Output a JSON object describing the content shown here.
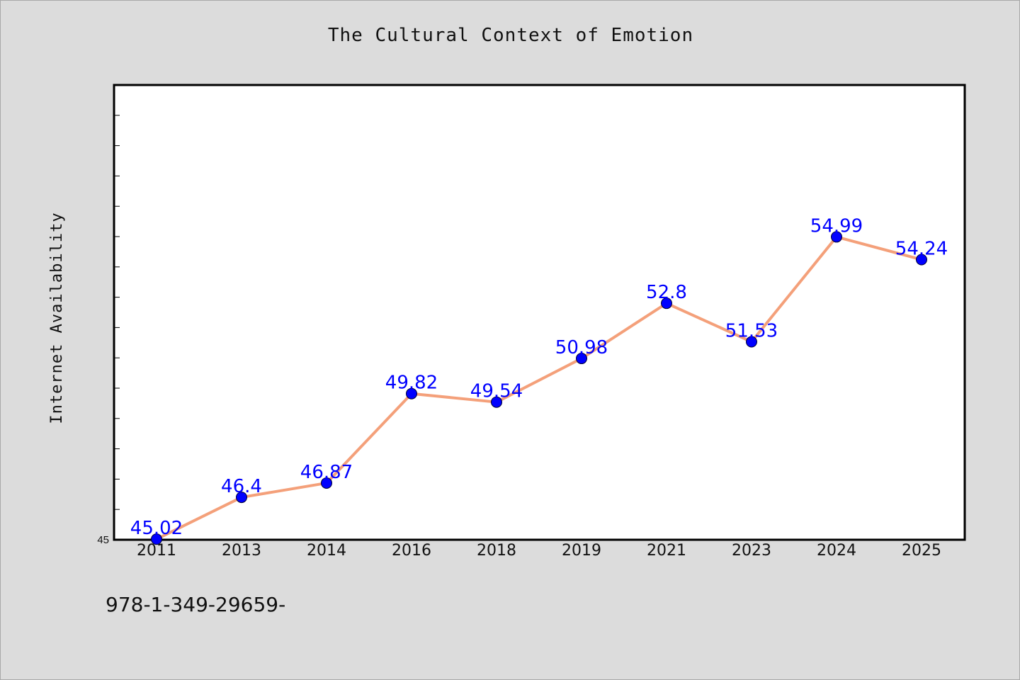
{
  "chart_data": {
    "type": "line",
    "title": "The Cultural Context of Emotion",
    "xlabel": "",
    "ylabel": "Internet Availability",
    "categories": [
      "2011",
      "2013",
      "2014",
      "2016",
      "2018",
      "2019",
      "2021",
      "2023",
      "2024",
      "2025"
    ],
    "values": [
      45.02,
      46.4,
      46.87,
      49.82,
      49.54,
      50.98,
      52.8,
      51.53,
      54.99,
      54.24
    ],
    "data_labels": [
      "45.02",
      "46.4",
      "46.87",
      "49.82",
      "49.54",
      "50.98",
      "52.8",
      "51.53",
      "54.99",
      "54.24"
    ],
    "y_tick_labels": [
      "45"
    ],
    "ylim": [
      45,
      60
    ],
    "grid": false,
    "line_color": "#f4a07a",
    "marker_color": "#0000ff",
    "label_color": "#0000ff"
  },
  "footer": {
    "isbn": "978-1-349-29659-"
  }
}
